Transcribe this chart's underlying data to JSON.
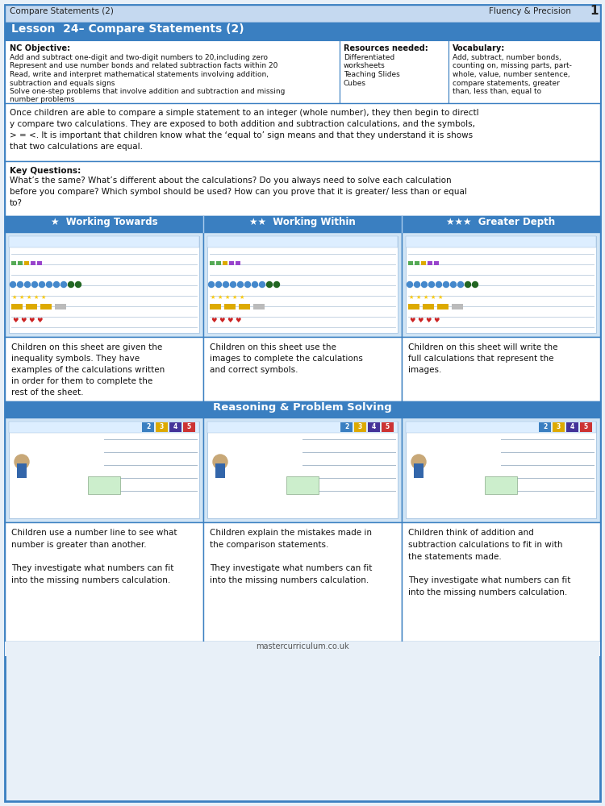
{
  "page_bg": "#e8f0f8",
  "header_bg": "#c5d9f0",
  "header_text_left": "Compare Statements (2)",
  "header_text_right": "Fluency & Precision",
  "header_number": "1",
  "lesson_bar_bg": "#3a7fc1",
  "lesson_title": "Lesson  24– Compare Statements (2)",
  "lesson_title_color": "#ffffff",
  "nc_objective_title": "NC Objective:",
  "nc_objective_lines": [
    "Add and subtract one-digit and two-digit numbers to 20,including zero",
    "Represent and use number bonds and related subtraction facts within 20",
    "Read, write and interpret mathematical statements involving addition,",
    "subtraction and equals signs",
    "Solve one-step problems that involve addition and subtraction and missing",
    "number problems"
  ],
  "resources_title": "Resources needed:",
  "resources_lines": [
    "Differentiated",
    "worksheets",
    "Teaching Slides",
    "Cubes"
  ],
  "vocab_title": "Vocabulary:",
  "vocab_lines": [
    "Add, subtract, number bonds,",
    "counting on, missing parts, part-",
    "whole, value, number sentence,",
    "compare statements, greater",
    "than, less than, equal to"
  ],
  "overview_text": "Once children are able to compare a simple statement to an integer (whole number), they then begin to directl\ny compare two calculations. They are exposed to both addition and subtraction calculations, and the symbols,\n> = <. It is important that children know what the ‘equal to’ sign means and that they understand it is shows\nthat two calculations are equal.",
  "key_questions_title": "Key Questions:",
  "key_questions_text": "What’s the same? What’s different about the calculations? Do you always need to solve each calculation\nbefore you compare? Which symbol should be used? How can you prove that it is greater/ less than or equal\nto?",
  "diff_bar_bg": "#3a7fc1",
  "diff_bar_color": "#ffffff",
  "working_towards": "★  Working Towards",
  "working_within": "★★  Working Within",
  "greater_depth": "★★★  Greater Depth",
  "wt_desc": "Children on this sheet are given the\ninequality symbols. They have\nexamples of the calculations written\nin order for them to complete the\nrest of the sheet.",
  "ww_desc": "Children on this sheet use the\nimages to complete the calculations\nand correct symbols.",
  "gd_desc": "Children on this sheet will write the\nfull calculations that represent the\nimages.",
  "rps_bar_bg": "#3a7fc1",
  "rps_title": "Reasoning & Problem Solving",
  "rps_title_color": "#ffffff",
  "rps1_desc": "Children use a number line to see what\nnumber is greater than another.\n\nThey investigate what numbers can fit\ninto the missing numbers calculation.",
  "rps2_desc": "Children explain the mistakes made in\nthe comparison statements.\n\nThey investigate what numbers can fit\ninto the missing numbers calculation.",
  "rps3_desc": "Children think of addition and\nsubtraction calculations to fit in with\nthe statements made.\n\nThey investigate what numbers can fit\ninto the missing numbers calculation.",
  "footer_text": "mastercurriculum.co.uk",
  "outer_border_color": "#3a7fc1",
  "cell_border_color": "#3a7fc1",
  "worksheet_bg": "#d0e4f5",
  "worksheet_inner_bg": "#f0f6fc",
  "col_divider": "#3a7fc1"
}
